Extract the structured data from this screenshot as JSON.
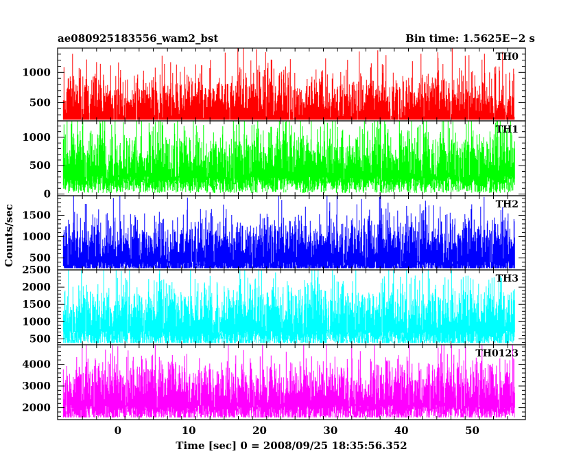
{
  "header": {
    "title": "ae080925183556_wam2_bst",
    "bin_time": "Bin time: 1.5625E−2 s"
  },
  "chart_data": {
    "type": "line",
    "xlabel": "Time [sec] 0 = 2008/09/25 18:35:56.352",
    "ylabel": "Counts/sec",
    "xlim": [
      -8.5,
      57.5
    ],
    "data_x_range": [
      -7.7,
      56.0
    ],
    "bin_time": 0.015625,
    "x_ticks": [
      0,
      10,
      20,
      30,
      40,
      50
    ],
    "grid": false,
    "panels": [
      {
        "name": "TH0",
        "color": "#ff0000",
        "ylim": [
          200,
          1400
        ],
        "y_ticks": [
          500,
          1000
        ],
        "mean": 530,
        "spread": 260,
        "values_summary": {
          "min": 220,
          "max": 1400
        }
      },
      {
        "name": "TH1",
        "color": "#00ff00",
        "ylim": [
          -30,
          1290
        ],
        "y_ticks": [
          0,
          500,
          1000
        ],
        "mean": 640,
        "spread": 270,
        "values_summary": {
          "min": 20,
          "max": 1290
        }
      },
      {
        "name": "TH2",
        "color": "#0000ff",
        "ylim": [
          220,
          1960
        ],
        "y_ticks": [
          500,
          1000,
          1500
        ],
        "mean": 820,
        "spread": 330,
        "values_summary": {
          "min": 260,
          "max": 1950
        }
      },
      {
        "name": "TH3",
        "color": "#00ffff",
        "ylim": [
          330,
          2500
        ],
        "y_ticks": [
          500,
          1000,
          1500,
          2000,
          2500
        ],
        "mean": 1250,
        "spread": 430,
        "values_summary": {
          "min": 380,
          "max": 2500
        }
      },
      {
        "name": "TH0123",
        "color": "#ff00ff",
        "ylim": [
          1450,
          4900
        ],
        "y_ticks": [
          2000,
          3000,
          4000
        ],
        "mean": 2900,
        "spread": 650,
        "values_summary": {
          "min": 1550,
          "max": 4900
        }
      }
    ]
  }
}
